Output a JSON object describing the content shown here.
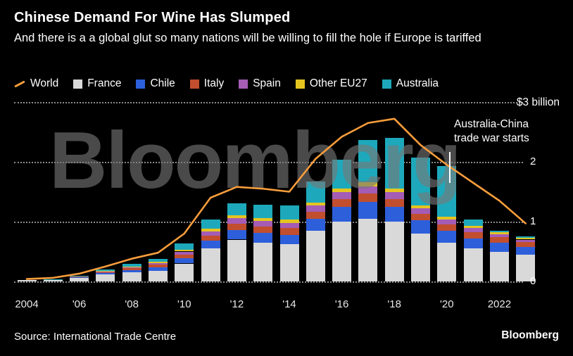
{
  "watermark": "Bloomberg",
  "footer": {
    "source": "Source: International Trade Centre",
    "logo": "Bloomberg"
  },
  "chart_data": {
    "type": "bar",
    "subtype": "stacked-bars-with-line-overlay",
    "title": "Chinese Demand For Wine Has Slumped",
    "subtitle": "And there is a a global glut so many nations will be willing to fill the hole if Europe is tariffed",
    "units": "$ billion",
    "ylim": [
      0,
      3
    ],
    "grid": "dotted-horizontal",
    "legend_position": "top",
    "categories": [
      2004,
      2005,
      2006,
      2007,
      2008,
      2009,
      2010,
      2011,
      2012,
      2013,
      2014,
      2015,
      2016,
      2017,
      2018,
      2019,
      2020,
      2021,
      2022,
      2023
    ],
    "series": [
      {
        "name": "France",
        "color": "#D9D9D9",
        "values": [
          0.02,
          0.03,
          0.06,
          0.12,
          0.15,
          0.18,
          0.3,
          0.55,
          0.7,
          0.65,
          0.62,
          0.85,
          1.0,
          1.05,
          1.0,
          0.8,
          0.65,
          0.55,
          0.5,
          0.45
        ]
      },
      {
        "name": "Chile",
        "color": "#2D5FDB",
        "values": [
          0.0,
          0.0,
          0.01,
          0.02,
          0.04,
          0.06,
          0.09,
          0.13,
          0.16,
          0.16,
          0.16,
          0.2,
          0.25,
          0.28,
          0.25,
          0.22,
          0.2,
          0.17,
          0.15,
          0.13
        ]
      },
      {
        "name": "Italy",
        "color": "#C14E2E",
        "values": [
          0.0,
          0.0,
          0.01,
          0.02,
          0.03,
          0.04,
          0.06,
          0.09,
          0.11,
          0.11,
          0.11,
          0.12,
          0.13,
          0.14,
          0.13,
          0.11,
          0.1,
          0.1,
          0.09,
          0.08
        ]
      },
      {
        "name": "Spain",
        "color": "#A45CB5",
        "values": [
          0.0,
          0.0,
          0.0,
          0.01,
          0.02,
          0.03,
          0.05,
          0.07,
          0.09,
          0.09,
          0.09,
          0.1,
          0.11,
          0.12,
          0.11,
          0.09,
          0.08,
          0.07,
          0.05,
          0.04
        ]
      },
      {
        "name": "Other EU27",
        "color": "#E5C520",
        "values": [
          0.0,
          0.0,
          0.0,
          0.01,
          0.01,
          0.02,
          0.03,
          0.04,
          0.05,
          0.05,
          0.05,
          0.05,
          0.06,
          0.07,
          0.06,
          0.05,
          0.05,
          0.04,
          0.03,
          0.03
        ]
      },
      {
        "name": "Australia",
        "color": "#1DA9BB",
        "values": [
          0.0,
          0.01,
          0.01,
          0.02,
          0.04,
          0.05,
          0.1,
          0.15,
          0.2,
          0.22,
          0.24,
          0.35,
          0.48,
          0.7,
          0.85,
          0.8,
          0.85,
          0.1,
          0.03,
          0.02
        ]
      }
    ],
    "line_series": {
      "name": "World",
      "color": "#F79D3C",
      "values": [
        0.04,
        0.06,
        0.13,
        0.25,
        0.38,
        0.48,
        0.8,
        1.4,
        1.58,
        1.55,
        1.5,
        2.05,
        2.42,
        2.65,
        2.72,
        2.28,
        1.95,
        1.65,
        1.35,
        0.97
      ]
    },
    "legend_items": [
      {
        "label": "World",
        "color": "#F79D3C",
        "swatch": "line"
      },
      {
        "label": "France",
        "color": "#D9D9D9",
        "swatch": "square"
      },
      {
        "label": "Chile",
        "color": "#2D5FDB",
        "swatch": "square"
      },
      {
        "label": "Italy",
        "color": "#C14E2E",
        "swatch": "square"
      },
      {
        "label": "Spain",
        "color": "#A45CB5",
        "swatch": "square"
      },
      {
        "label": "Other EU27",
        "color": "#E5C520",
        "swatch": "square"
      },
      {
        "label": "Australia",
        "color": "#1DA9BB",
        "swatch": "square"
      }
    ],
    "y_axis": {
      "top_label": "$3 billion",
      "ticks": [
        {
          "value": 2,
          "label": "2"
        },
        {
          "value": 1,
          "label": "1"
        },
        {
          "value": 0,
          "label": "0"
        }
      ]
    },
    "x_ticks": [
      {
        "index": 0,
        "label": "2004"
      },
      {
        "index": 2,
        "label": "'06"
      },
      {
        "index": 4,
        "label": "'08"
      },
      {
        "index": 6,
        "label": "'10"
      },
      {
        "index": 8,
        "label": "'12"
      },
      {
        "index": 10,
        "label": "'14"
      },
      {
        "index": 12,
        "label": "'16"
      },
      {
        "index": 14,
        "label": "'18"
      },
      {
        "index": 16,
        "label": "'20"
      },
      {
        "index": 18,
        "label": "2022"
      }
    ],
    "annotation": {
      "line1": "Australia-China",
      "line2": "trade war starts"
    }
  }
}
